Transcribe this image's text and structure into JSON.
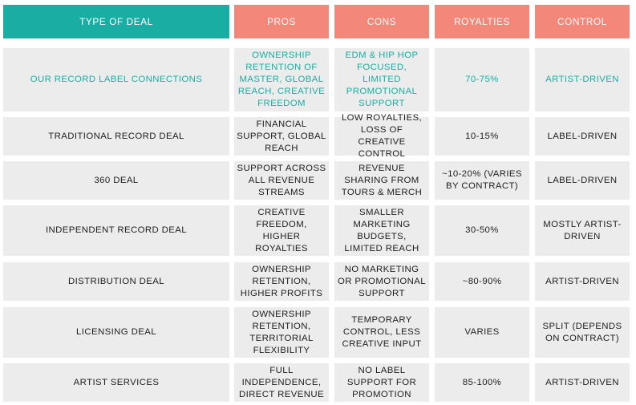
{
  "header": {
    "type_of_deal": "TYPE OF DEAL",
    "pros": "PROS",
    "cons": "CONS",
    "royalties": "ROYALTIES",
    "control": "CONTROL"
  },
  "rows": [
    {
      "deal": "OUR RECORD LABEL CONNECTIONS",
      "pros": "OWNERSHIP RETENTION OF MASTER, GLOBAL REACH, CREATIVE FREEDOM",
      "cons": "EDM & HIP HOP FOCUSED, LIMITED PROMOTIONAL SUPPORT",
      "royalties": "70-75%",
      "control": "ARTIST-DRIVEN"
    },
    {
      "deal": "TRADITIONAL RECORD DEAL",
      "pros": "FINANCIAL SUPPORT, GLOBAL REACH",
      "cons": "LOW ROYALTIES, LOSS OF CREATIVE CONTROL",
      "royalties": "10-15%",
      "control": "LABEL-DRIVEN"
    },
    {
      "deal": "360 DEAL",
      "pros": "SUPPORT ACROSS ALL REVENUE STREAMS",
      "cons": "REVENUE SHARING FROM TOURS & MERCH",
      "royalties": "~10-20% (VARIES BY CONTRACT)",
      "control": "LABEL-DRIVEN"
    },
    {
      "deal": "INDEPENDENT RECORD DEAL",
      "pros": "CREATIVE FREEDOM, HIGHER ROYALTIES",
      "cons": "SMALLER MARKETING BUDGETS, LIMITED REACH",
      "royalties": "30-50%",
      "control": "MOSTLY ARTIST-DRIVEN"
    },
    {
      "deal": "DISTRIBUTION DEAL",
      "pros": "OWNERSHIP RETENTION, HIGHER PROFITS",
      "cons": "NO MARKETING OR PROMOTIONAL SUPPORT",
      "royalties": "~80-90%",
      "control": "ARTIST-DRIVEN"
    },
    {
      "deal": "LICENSING DEAL",
      "pros": "OWNERSHIP RETENTION, TERRITORIAL FLEXIBILITY",
      "cons": "TEMPORARY CONTROL, LESS CREATIVE INPUT",
      "royalties": "VARIES",
      "control": "SPLIT (DEPENDS ON CONTRACT)"
    },
    {
      "deal": "ARTIST SERVICES",
      "pros": "FULL INDEPENDENCE, DIRECT REVENUE",
      "cons": "NO LABEL SUPPORT FOR PROMOTION",
      "royalties": "85-100%",
      "control": "ARTIST-DRIVEN"
    }
  ],
  "colors": {
    "teal": "#1aada3",
    "salmon": "#f3877a",
    "cell_bg": "#ececec",
    "text": "#1e1e1e"
  }
}
